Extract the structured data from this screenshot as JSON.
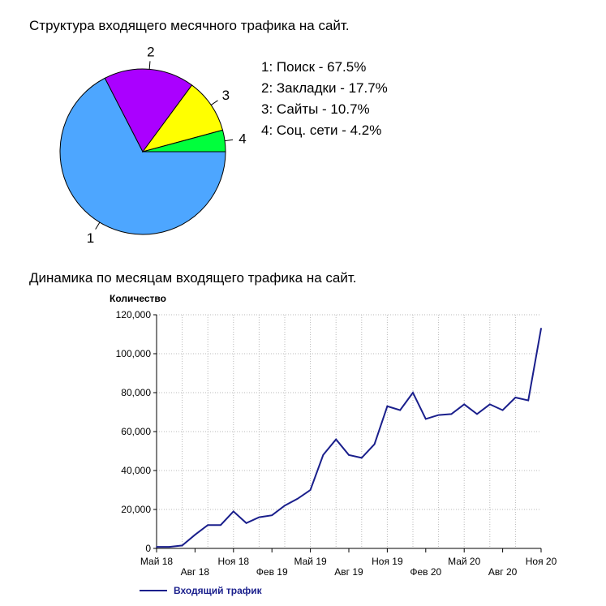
{
  "chart_data": [
    {
      "type": "pie",
      "title": "Структура входящего месячного трафика на сайт.",
      "slices": [
        {
          "label": "1",
          "legend": "1: Поиск - 67.5%",
          "value": 67.5,
          "color": "#4da6ff"
        },
        {
          "label": "2",
          "legend": "2: Закладки - 17.7%",
          "value": 17.7,
          "color": "#aa00ff"
        },
        {
          "label": "3",
          "legend": "3: Сайты - 10.7%",
          "value": 10.7,
          "color": "#ffff00"
        },
        {
          "label": "4",
          "legend": "4: Соц. сети - 4.2%",
          "value": 4.2,
          "color": "#00ff3c"
        }
      ],
      "legend_position": "right"
    },
    {
      "type": "line",
      "title": "Динамика по месяцам входящего трафика на сайт.",
      "ylabel": "Количество",
      "ylim": [
        0,
        120000
      ],
      "yticks": [
        "0",
        "20,000",
        "40,000",
        "60,000",
        "80,000",
        "100,000",
        "120,000"
      ],
      "xticks_top": [
        "Май 18",
        "Ноя 18",
        "Май 19",
        "Ноя 19",
        "Май 20",
        "Ноя 20"
      ],
      "xticks_bottom": [
        "Авг 18",
        "Фев 19",
        "Авг 19",
        "Фев 20",
        "Авг 20"
      ],
      "grid": true,
      "series": [
        {
          "name": "Входящий трафик",
          "color": "#1a1f8c",
          "x": [
            "2018-05",
            "2018-06",
            "2018-07",
            "2018-08",
            "2018-09",
            "2018-10",
            "2018-11",
            "2018-12",
            "2019-01",
            "2019-02",
            "2019-03",
            "2019-04",
            "2019-05",
            "2019-06",
            "2019-07",
            "2019-08",
            "2019-09",
            "2019-10",
            "2019-11",
            "2019-12",
            "2020-01",
            "2020-02",
            "2020-03",
            "2020-04",
            "2020-05",
            "2020-06",
            "2020-07",
            "2020-08",
            "2020-09",
            "2020-10",
            "2020-11"
          ],
          "values": [
            800,
            800,
            1500,
            7000,
            12000,
            12000,
            19000,
            13000,
            16000,
            17000,
            22000,
            25500,
            30000,
            48000,
            56000,
            48000,
            46500,
            53500,
            73000,
            71000,
            80000,
            66500,
            68500,
            69000,
            74000,
            69000,
            74000,
            71000,
            77500,
            76000,
            113000
          ]
        }
      ]
    }
  ]
}
